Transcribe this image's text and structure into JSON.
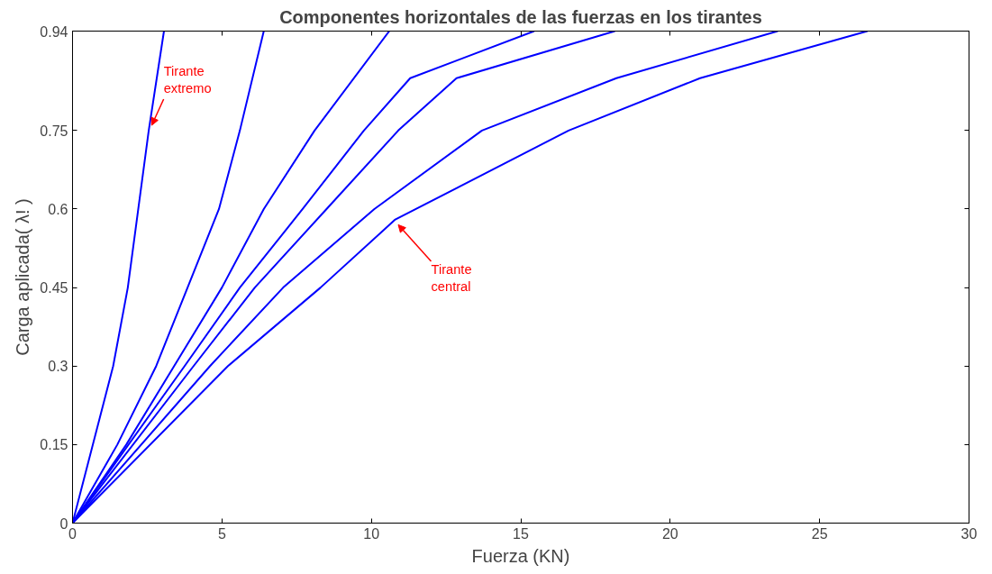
{
  "chart_data": {
    "type": "line",
    "title": "Componentes horizontales de las fuerzas en los tirantes",
    "xlabel": "Fuerza (KN)",
    "ylabel": "Carga aplicada( λ! )",
    "xlim": [
      0,
      30
    ],
    "ylim": [
      0,
      0.94
    ],
    "xticks": [
      0,
      5,
      10,
      15,
      20,
      25,
      30
    ],
    "yticks": [
      0,
      0.15,
      0.3,
      0.45,
      0.6,
      0.75,
      0.94
    ],
    "grid": false,
    "marker": "none",
    "line_style": "solid",
    "series": [
      {
        "color": "#0000ff",
        "x": [
          0,
          1.36,
          1.85,
          2.2,
          2.55,
          3.06
        ],
        "values": [
          0,
          0.3,
          0.45,
          0.6,
          0.75,
          0.94
        ]
      },
      {
        "color": "#0000ff",
        "x": [
          0,
          1.5,
          2.8,
          3.85,
          4.9,
          5.6,
          6.4
        ],
        "values": [
          0,
          0.15,
          0.3,
          0.45,
          0.6,
          0.75,
          0.94
        ]
      },
      {
        "color": "#0000ff",
        "x": [
          0,
          1.8,
          3.4,
          5.0,
          6.4,
          8.1,
          10.6
        ],
        "values": [
          0,
          0.15,
          0.3,
          0.45,
          0.6,
          0.75,
          0.94
        ]
      },
      {
        "color": "#0000ff",
        "x": [
          0,
          3.75,
          5.6,
          7.7,
          9.75,
          11.3,
          15.45
        ],
        "values": [
          0,
          0.3,
          0.45,
          0.6,
          0.75,
          0.85,
          0.94
        ]
      },
      {
        "color": "#0000ff",
        "x": [
          0,
          4.05,
          6.1,
          8.5,
          10.9,
          12.85,
          18.15
        ],
        "values": [
          0,
          0.3,
          0.45,
          0.6,
          0.75,
          0.85,
          0.94
        ]
      },
      {
        "color": "#0000ff",
        "x": [
          0,
          4.6,
          7.05,
          10.1,
          13.7,
          18.2,
          23.6
        ],
        "values": [
          0,
          0.3,
          0.45,
          0.6,
          0.75,
          0.85,
          0.94
        ]
      },
      {
        "color": "#0000ff",
        "x": [
          0,
          5.2,
          8.3,
          10.8,
          16.6,
          21.0,
          26.6
        ],
        "values": [
          0,
          0.3,
          0.45,
          0.58,
          0.75,
          0.85,
          0.94
        ]
      }
    ],
    "annotations": [
      {
        "text": "Tirante\nextremo",
        "x": 2.55,
        "y": 0.75
      },
      {
        "text": "Tirante\ncentral",
        "x": 10.8,
        "y": 0.58
      }
    ]
  }
}
